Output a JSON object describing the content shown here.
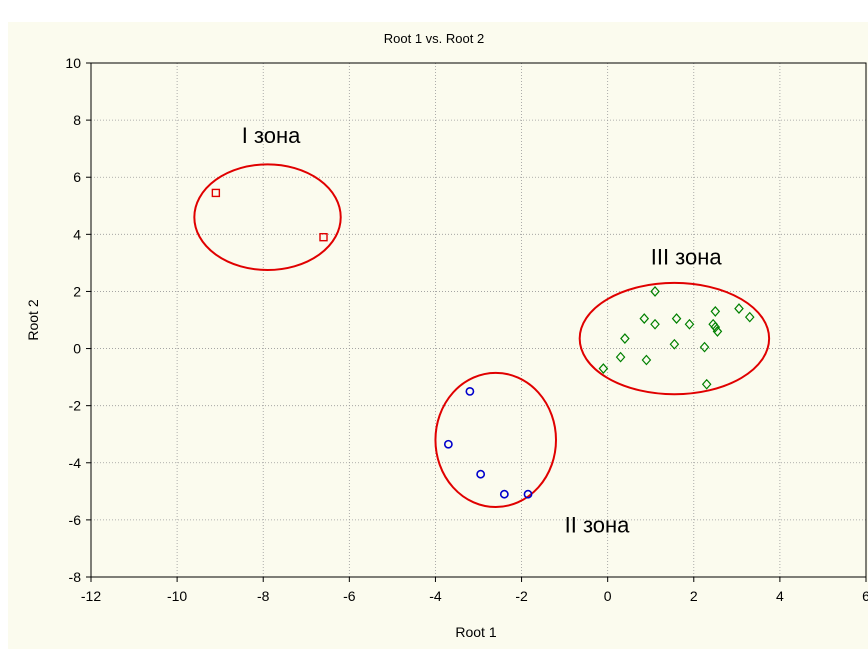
{
  "chart_data": {
    "type": "scatter",
    "title": "Root 1 vs. Root 2",
    "xlabel": "Root 1",
    "ylabel": "Root 2",
    "xlim": [
      -12,
      6
    ],
    "ylim": [
      -8,
      10
    ],
    "x_ticks": [
      -12,
      -10,
      -8,
      -6,
      -4,
      -2,
      0,
      2,
      4,
      6
    ],
    "y_ticks": [
      -8,
      -6,
      -4,
      -2,
      0,
      2,
      4,
      6,
      8,
      10
    ],
    "grid": true,
    "legend": "none",
    "series": [
      {
        "marker": "square",
        "color": "#e00000",
        "points": [
          [
            -9.1,
            5.45
          ],
          [
            -6.6,
            3.9
          ]
        ]
      },
      {
        "marker": "circle",
        "color": "#0000cc",
        "points": [
          [
            -3.2,
            -1.5
          ],
          [
            -3.7,
            -3.35
          ],
          [
            -2.95,
            -4.4
          ],
          [
            -2.4,
            -5.1
          ],
          [
            -1.85,
            -5.1
          ]
        ]
      },
      {
        "marker": "diamond",
        "color": "#008000",
        "points": [
          [
            -0.1,
            -0.7
          ],
          [
            0.3,
            -0.3
          ],
          [
            0.4,
            0.35
          ],
          [
            0.85,
            1.05
          ],
          [
            0.9,
            -0.4
          ],
          [
            1.1,
            2.0
          ],
          [
            1.1,
            0.85
          ],
          [
            1.55,
            0.15
          ],
          [
            1.6,
            1.05
          ],
          [
            1.9,
            0.85
          ],
          [
            2.25,
            0.05
          ],
          [
            2.3,
            -1.25
          ],
          [
            2.45,
            0.85
          ],
          [
            2.5,
            1.3
          ],
          [
            2.5,
            0.75
          ],
          [
            2.55,
            0.6
          ],
          [
            3.05,
            1.4
          ],
          [
            3.3,
            1.1
          ]
        ]
      }
    ],
    "annotations": [
      {
        "text": "I зона",
        "x": -8.5,
        "y": 7.2
      },
      {
        "text": "III зона",
        "x": 1.0,
        "y": 2.95
      },
      {
        "text": "II зона",
        "x": -1.0,
        "y": -6.45
      }
    ],
    "zones": [
      {
        "name": "I зона",
        "cx": -7.9,
        "cy": 4.6,
        "rx": 1.7,
        "ry": 1.85
      },
      {
        "name": "III зона",
        "cx": 1.55,
        "cy": 0.35,
        "rx": 2.2,
        "ry": 1.95
      },
      {
        "name": "II зона",
        "cx": -2.6,
        "cy": -3.2,
        "rx": 1.4,
        "ry": 2.35
      }
    ],
    "colors": {
      "zone_outline": "#e00000",
      "background": "#fbfbee",
      "grid": "#999999"
    }
  }
}
